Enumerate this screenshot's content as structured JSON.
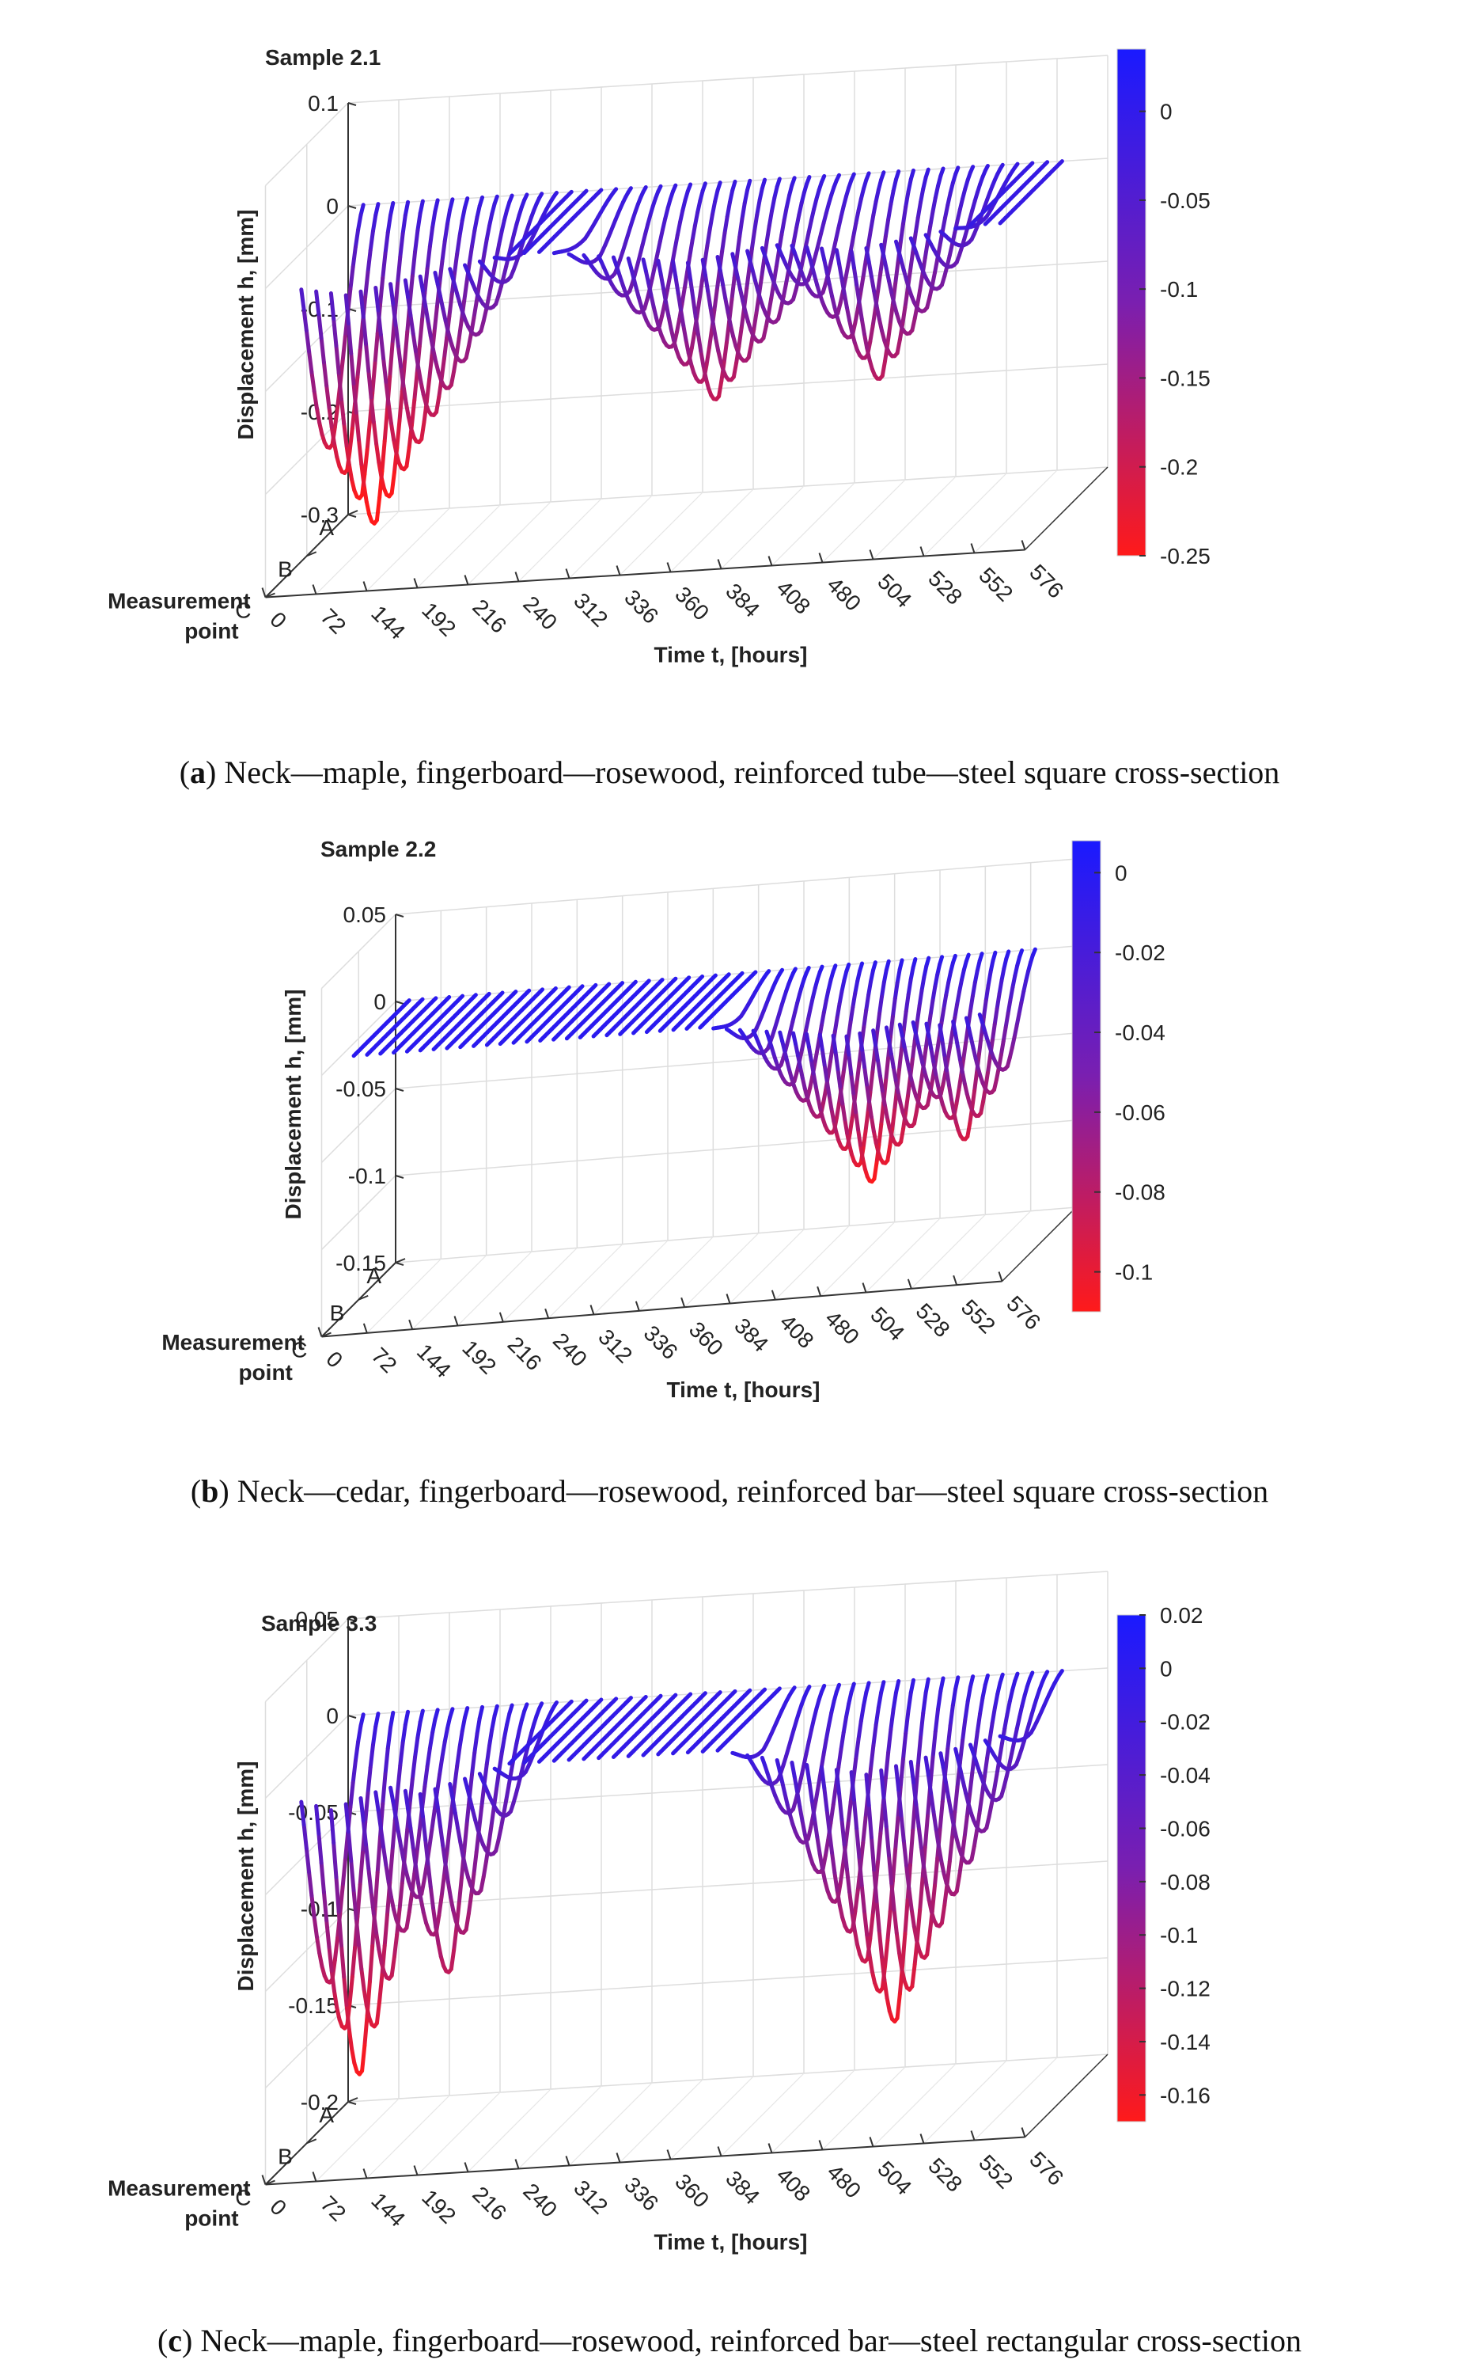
{
  "chart_data": [
    {
      "type": "surface-lines-3d",
      "title": "Sample 2.1",
      "zlabel": "Displacement h, [mm]",
      "ylabel_line1": "Measurement",
      "ylabel_line2": "point",
      "xlabel": "Time t, [hours]",
      "measurement_points": [
        "A",
        "B",
        "C"
      ],
      "time_ticks": [
        "0",
        "72",
        "144",
        "192",
        "216",
        "240",
        "312",
        "336",
        "360",
        "384",
        "408",
        "480",
        "504",
        "528",
        "552",
        "576"
      ],
      "z_ticks": [
        "0.1",
        "0",
        "-0.1",
        "-0.2",
        "-0.3"
      ],
      "zlim": [
        -0.3,
        0.1
      ],
      "colorbar_ticks": [
        "0",
        "-0.05",
        "-0.1",
        "-0.15",
        "-0.2",
        "-0.25"
      ],
      "colorbar_range": [
        -0.25,
        0.035
      ],
      "colormap": {
        "high": "#1a1aff",
        "low": "#ff1a1a"
      },
      "curve_count": 48,
      "dips": [
        {
          "at_curve": 3,
          "width": 10,
          "depth": -0.28
        },
        {
          "at_curve": 26,
          "width": 9,
          "depth": -0.18
        },
        {
          "at_curve": 37,
          "width": 7,
          "depth": -0.17
        }
      ],
      "caption_letter": "a",
      "caption_text": "Neck—maple, fingerboard—rosewood, reinforced tube—steel square cross-section"
    },
    {
      "type": "surface-lines-3d",
      "title": "Sample 2.2",
      "zlabel": "Displacement h, [mm]",
      "ylabel_line1": "Measurement",
      "ylabel_line2": "point",
      "xlabel": "Time t, [hours]",
      "measurement_points": [
        "A",
        "B",
        "C"
      ],
      "time_ticks": [
        "0",
        "72",
        "144",
        "192",
        "216",
        "240",
        "312",
        "336",
        "360",
        "384",
        "408",
        "480",
        "504",
        "528",
        "552",
        "576"
      ],
      "z_ticks": [
        "0.05",
        "0",
        "-0.05",
        "-0.1",
        "-0.15"
      ],
      "zlim": [
        -0.15,
        0.05
      ],
      "colorbar_ticks": [
        "0",
        "-0.02",
        "-0.04",
        "-0.06",
        "-0.08",
        "-0.1"
      ],
      "colorbar_range": [
        -0.11,
        0.008
      ],
      "colormap": {
        "high": "#1a1aff",
        "low": "#ff1a1a"
      },
      "curve_count": 48,
      "dips": [
        {
          "at_curve": 37,
          "width": 10,
          "depth": -0.11
        },
        {
          "at_curve": 44,
          "width": 6,
          "depth": -0.09
        }
      ],
      "caption_letter": "b",
      "caption_text": "Neck—cedar, fingerboard—rosewood, reinforced bar—steel square cross-section"
    },
    {
      "type": "surface-lines-3d",
      "title": "Sample 3.3",
      "zlabel": "Displacement h, [mm]",
      "ylabel_line1": "Measurement",
      "ylabel_line2": "point",
      "xlabel": "Time t, [hours]",
      "measurement_points": [
        "A",
        "B",
        "C"
      ],
      "time_ticks": [
        "0",
        "72",
        "144",
        "192",
        "216",
        "240",
        "312",
        "336",
        "360",
        "384",
        "408",
        "480",
        "504",
        "528",
        "552",
        "576"
      ],
      "z_ticks": [
        "0.05",
        "0",
        "-0.05",
        "-0.1",
        "-0.15",
        "-0.2"
      ],
      "zlim": [
        -0.2,
        0.05
      ],
      "colorbar_ticks": [
        "0.02",
        "0",
        "-0.02",
        "-0.04",
        "-0.06",
        "-0.08",
        "-0.1",
        "-0.12",
        "-0.14",
        "-0.16"
      ],
      "colorbar_range": [
        -0.17,
        0.02
      ],
      "colormap": {
        "high": "#1a1aff",
        "low": "#ff1a1a"
      },
      "curve_count": 48,
      "dips": [
        {
          "at_curve": 2,
          "width": 6,
          "depth": -0.17
        },
        {
          "at_curve": 8,
          "width": 5,
          "depth": -0.12
        },
        {
          "at_curve": 38,
          "width": 9,
          "depth": -0.16
        }
      ],
      "caption_letter": "c",
      "caption_text": "Neck—maple, fingerboard—rosewood, reinforced bar—steel rectangular cross-section"
    }
  ]
}
